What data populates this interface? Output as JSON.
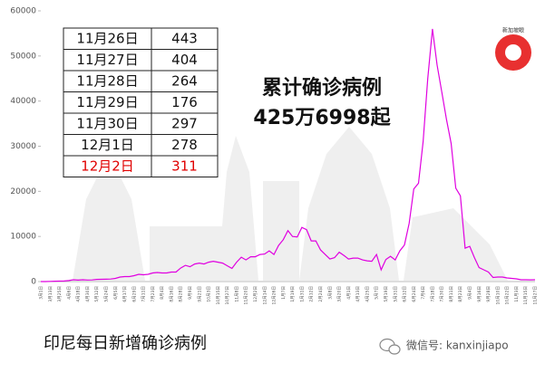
{
  "chart_data": {
    "type": "line",
    "ylim": [
      0,
      60000
    ],
    "yticks": [
      0,
      10000,
      20000,
      30000,
      40000,
      50000,
      60000
    ],
    "categories": [
      "3月1日",
      null,
      "3月13日",
      null,
      "3月25日",
      null,
      "4月6日",
      null,
      "4月18日",
      null,
      "4月30日",
      null,
      "5月12日",
      null,
      "5月24日",
      null,
      "6月5日",
      null,
      "6月17日",
      null,
      "6月29日",
      null,
      "7月11日",
      null,
      "7月23日",
      null,
      "8月4日",
      null,
      "8月16日",
      null,
      "8月28日",
      null,
      "9月9日",
      null,
      "9月21日",
      null,
      "10月3日",
      null,
      "10月15日",
      null,
      "10月27日",
      null,
      "11月8日",
      null,
      "11月20日",
      null,
      "12月2日",
      null,
      "12月14日",
      null,
      "12月26日",
      null,
      "1月7日",
      null,
      "1月19日",
      null,
      "1月31日",
      null,
      "2月12日",
      null,
      "2月24日",
      null,
      "3月8日",
      null,
      "3月20日",
      null,
      "4月1日",
      null,
      "4月13日",
      null,
      "4月25日",
      null,
      "5月7日",
      null,
      "5月19日",
      null,
      "5月31日",
      null,
      "6月12日",
      null,
      "6月24日",
      null,
      "7月6日",
      null,
      "7月18日",
      null,
      "7月30日",
      null,
      "8月11日",
      null,
      "8月23日",
      null,
      "9月4日",
      null,
      "9月16日",
      null,
      "9月28日",
      null,
      "10月10日",
      null,
      "10月22日",
      null,
      "11月3日",
      null,
      "11月15日",
      null,
      "11月27日"
    ],
    "series": [
      {
        "color": "#e000e0",
        "values": [
          0,
          2,
          35,
          80,
          100,
          115,
          220,
          400,
          330,
          400,
          350,
          370,
          480,
          500,
          520,
          560,
          700,
          1000,
          1100,
          1100,
          1300,
          1600,
          1500,
          1600,
          1900,
          2000,
          1900,
          1900,
          2100,
          2100,
          3000,
          3600,
          3300,
          3900,
          4100,
          3900,
          4300,
          4500,
          4300,
          4100,
          3500,
          2900,
          4300,
          5400,
          4800,
          5500,
          5500,
          6000,
          6100,
          6800,
          6000,
          8000,
          9300,
          11300,
          10000,
          9900,
          12000,
          11500,
          9000,
          9000,
          7000,
          6000,
          5000,
          5300,
          6500,
          5800,
          5000,
          5200,
          5200,
          4800,
          4600,
          4500,
          6000,
          2600,
          4900,
          5600,
          4800,
          6800,
          8100,
          12900,
          20500,
          21800,
          31000,
          45000,
          56000,
          48000,
          42000,
          36000,
          30600,
          20700,
          19000,
          7400,
          7800,
          5300,
          3100,
          2600,
          2100,
          900,
          1000,
          1000,
          800,
          700,
          600,
          400,
          400,
          380,
          400
        ]
      }
    ],
    "annotation": [
      "累计确诊病例",
      "425万6998起"
    ],
    "caption": "印尼每日新增确诊病例"
  },
  "table": {
    "rows": [
      [
        "11月26日",
        443
      ],
      [
        "11月27日",
        404
      ],
      [
        "11月28日",
        264
      ],
      [
        "11月29日",
        176
      ],
      [
        "11月30日",
        297
      ],
      [
        "12月1日",
        278
      ],
      [
        "12月2日",
        311
      ]
    ]
  },
  "logo": "新加坡眼",
  "watermark": "微信号: kanxinjiapo"
}
